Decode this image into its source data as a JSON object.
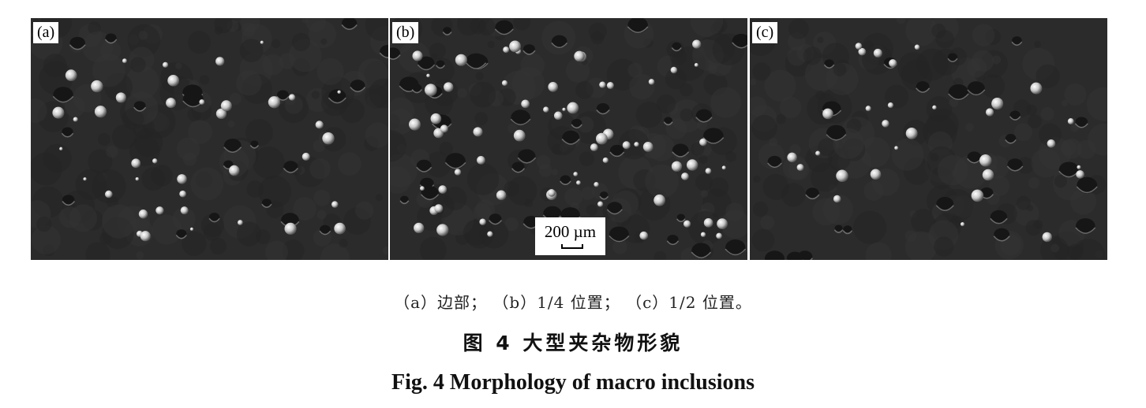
{
  "figure": {
    "panels": [
      {
        "id": "a",
        "label": "(a)"
      },
      {
        "id": "b",
        "label": "(b)",
        "scale_bar": "200 µm"
      },
      {
        "id": "c",
        "label": "(c)"
      }
    ],
    "subcaption": "（a）边部； （b）1/4 位置； （c）1/2 位置。",
    "caption_cn": "图 4   大型夹杂物形貌",
    "caption_en": "Fig. 4    Morphology of macro inclusions"
  }
}
